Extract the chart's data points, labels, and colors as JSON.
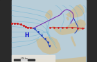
{
  "bg_land_color": "#c8bfa0",
  "bg_sea_color": "#b8cdd8",
  "bg_dark_left": "#2a2a2a",
  "isobar_color": "#7ab8d4",
  "front_warm_color": "#cc2020",
  "front_cold_color": "#2244bb",
  "front_occluded_color": "#7722aa",
  "high_label": "H",
  "high_color": "#0000cc",
  "bar_color": "#555555",
  "scalebar_bg": "#e8e8e8"
}
